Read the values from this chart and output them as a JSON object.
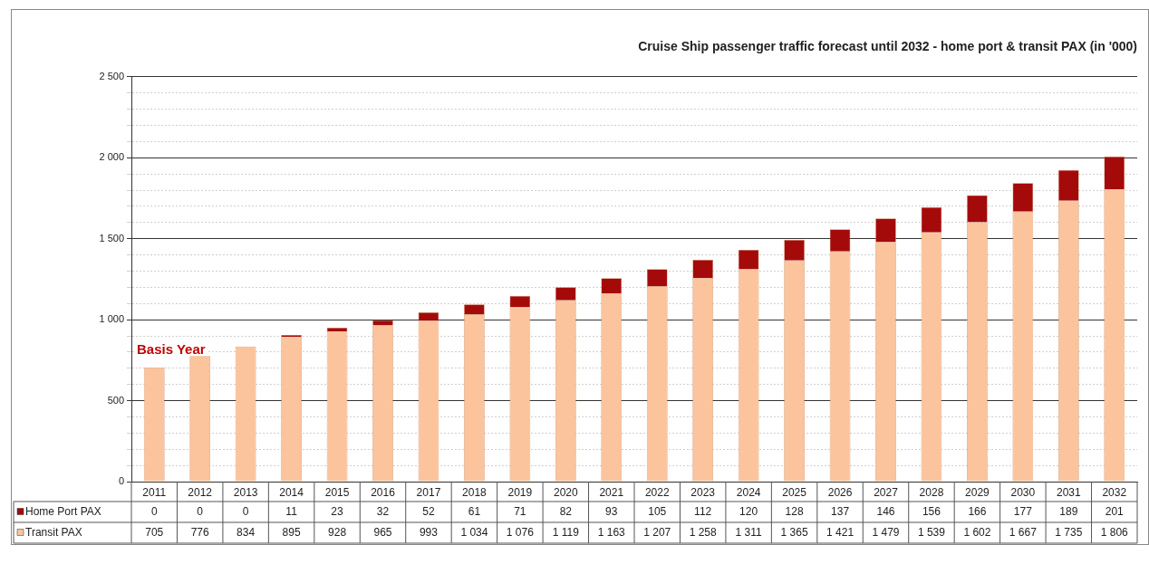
{
  "chart_data": {
    "type": "bar",
    "title": "Cruise Ship passenger traffic forecast until 2032 - home port & transit PAX (in '000)",
    "categories": [
      "2011",
      "2012",
      "2013",
      "2014",
      "2015",
      "2016",
      "2017",
      "2018",
      "2019",
      "2020",
      "2021",
      "2022",
      "2023",
      "2024",
      "2025",
      "2026",
      "2027",
      "2028",
      "2029",
      "2030",
      "2031",
      "2032"
    ],
    "stacked": true,
    "series": [
      {
        "name": "Transit PAX",
        "color": "#fbc49c",
        "values": [
          705,
          776,
          834,
          895,
          928,
          965,
          993,
          1034,
          1076,
          1119,
          1163,
          1207,
          1258,
          1311,
          1365,
          1421,
          1479,
          1539,
          1602,
          1667,
          1735,
          1806
        ],
        "value_labels": [
          "705",
          "776",
          "834",
          "895",
          "928",
          "965",
          "993",
          "1 034",
          "1 076",
          "1 119",
          "1 163",
          "1 207",
          "1 258",
          "1 311",
          "1 365",
          "1 421",
          "1 479",
          "1 539",
          "1 602",
          "1 667",
          "1 735",
          "1 806"
        ]
      },
      {
        "name": "Home Port PAX",
        "color": "#a50a0a",
        "values": [
          0,
          0,
          0,
          11,
          23,
          32,
          52,
          61,
          71,
          82,
          93,
          105,
          112,
          120,
          128,
          137,
          146,
          156,
          166,
          177,
          189,
          201
        ],
        "value_labels": [
          "0",
          "0",
          "0",
          "11",
          "23",
          "32",
          "52",
          "61",
          "71",
          "82",
          "93",
          "105",
          "112",
          "120",
          "128",
          "137",
          "146",
          "156",
          "166",
          "177",
          "189",
          "201"
        ]
      }
    ],
    "ylim": [
      0,
      2500
    ],
    "yticks": [
      0,
      {
        "value": 100,
        "label": null
      },
      {
        "value": 200,
        "label": null
      },
      {
        "value": 300,
        "label": null
      },
      {
        "value": 400,
        "label": null
      },
      500,
      {
        "value": 600,
        "label": null
      },
      {
        "value": 700,
        "label": null
      },
      {
        "value": 800,
        "label": null
      },
      {
        "value": 900,
        "label": null
      },
      {
        "value": 1000,
        "label": "1 000"
      },
      {
        "value": 1100,
        "label": null
      },
      {
        "value": 1200,
        "label": null
      },
      {
        "value": 1300,
        "label": null
      },
      {
        "value": 1400,
        "label": null
      },
      {
        "value": 1500,
        "label": "1 500"
      },
      {
        "value": 1600,
        "label": null
      },
      {
        "value": 1700,
        "label": null
      },
      {
        "value": 1800,
        "label": null
      },
      {
        "value": 1900,
        "label": null
      },
      {
        "value": 2000,
        "label": "2 000"
      },
      {
        "value": 2100,
        "label": null
      },
      {
        "value": 2200,
        "label": null
      },
      {
        "value": 2300,
        "label": null
      },
      {
        "value": 2400,
        "label": null
      },
      {
        "value": 2500,
        "label": "2 500"
      }
    ],
    "grid": "y",
    "legend": "bottom",
    "annotations": [
      "Basis Year"
    ]
  }
}
